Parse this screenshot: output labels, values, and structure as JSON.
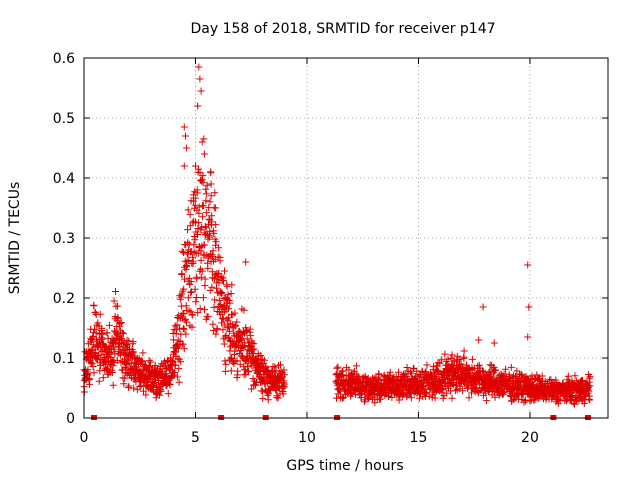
{
  "chart_data": {
    "type": "scatter",
    "title": "Day 158 of 2018, SRMTID for receiver p147",
    "xlabel": "GPS time / hours",
    "ylabel": "SRMTID / TECUs",
    "xlim": [
      0,
      23.5
    ],
    "ylim": [
      0,
      0.6
    ],
    "x_ticks": [
      0,
      5,
      10,
      15,
      20
    ],
    "y_ticks": [
      0,
      0.1,
      0.2,
      0.3,
      0.4,
      0.5,
      0.6
    ],
    "x_tick_labels": [
      "0",
      "5",
      "10",
      "15",
      "20"
    ],
    "y_tick_labels": [
      "0",
      "0.1",
      "0.2",
      "0.3",
      "0.4",
      "0.5",
      "0.6"
    ],
    "grid": true,
    "marker": "plus",
    "color": "#e00000",
    "gap_markers_x": [
      0.45,
      6.15,
      8.15,
      11.35,
      21.05,
      22.6
    ],
    "profile": [
      {
        "x": 0.0,
        "y": 0.07
      },
      {
        "x": 0.2,
        "y": 0.09
      },
      {
        "x": 0.45,
        "y": 0.13
      },
      {
        "x": 0.8,
        "y": 0.11
      },
      {
        "x": 1.2,
        "y": 0.1
      },
      {
        "x": 1.45,
        "y": 0.15
      },
      {
        "x": 1.8,
        "y": 0.1
      },
      {
        "x": 2.3,
        "y": 0.08
      },
      {
        "x": 2.8,
        "y": 0.07
      },
      {
        "x": 3.3,
        "y": 0.06
      },
      {
        "x": 3.8,
        "y": 0.07
      },
      {
        "x": 4.1,
        "y": 0.11
      },
      {
        "x": 4.4,
        "y": 0.18
      },
      {
        "x": 4.8,
        "y": 0.27
      },
      {
        "x": 5.2,
        "y": 0.33
      },
      {
        "x": 5.5,
        "y": 0.32
      },
      {
        "x": 5.8,
        "y": 0.27
      },
      {
        "x": 6.1,
        "y": 0.2
      },
      {
        "x": 6.5,
        "y": 0.15
      },
      {
        "x": 7.0,
        "y": 0.12
      },
      {
        "x": 7.5,
        "y": 0.1
      },
      {
        "x": 8.0,
        "y": 0.07
      },
      {
        "x": 8.5,
        "y": 0.06
      },
      {
        "x": 9.0,
        "y": 0.06
      },
      {
        "x": 11.5,
        "y": 0.06
      },
      {
        "x": 13.0,
        "y": 0.05
      },
      {
        "x": 14.5,
        "y": 0.055
      },
      {
        "x": 15.5,
        "y": 0.06
      },
      {
        "x": 16.5,
        "y": 0.075
      },
      {
        "x": 17.3,
        "y": 0.07
      },
      {
        "x": 18.0,
        "y": 0.06
      },
      {
        "x": 19.0,
        "y": 0.055
      },
      {
        "x": 20.0,
        "y": 0.05
      },
      {
        "x": 21.0,
        "y": 0.045
      },
      {
        "x": 22.0,
        "y": 0.045
      },
      {
        "x": 22.7,
        "y": 0.05
      }
    ],
    "coverage_ranges_hours": [
      [
        0.0,
        9.0
      ],
      [
        11.3,
        22.7
      ]
    ],
    "spread_fraction": 0.4,
    "outliers": [
      {
        "x": 5.15,
        "y": 0.585
      },
      {
        "x": 5.2,
        "y": 0.565
      },
      {
        "x": 5.25,
        "y": 0.545
      },
      {
        "x": 5.1,
        "y": 0.52
      },
      {
        "x": 4.5,
        "y": 0.485
      },
      {
        "x": 4.55,
        "y": 0.47
      },
      {
        "x": 4.6,
        "y": 0.45
      },
      {
        "x": 5.3,
        "y": 0.46
      },
      {
        "x": 5.4,
        "y": 0.44
      },
      {
        "x": 5.0,
        "y": 0.42
      },
      {
        "x": 4.5,
        "y": 0.42
      },
      {
        "x": 5.7,
        "y": 0.39
      },
      {
        "x": 5.9,
        "y": 0.35
      },
      {
        "x": 6.3,
        "y": 0.245
      },
      {
        "x": 7.25,
        "y": 0.26
      },
      {
        "x": 19.9,
        "y": 0.255
      },
      {
        "x": 17.9,
        "y": 0.185
      },
      {
        "x": 19.95,
        "y": 0.185
      },
      {
        "x": 1.35,
        "y": 0.195
      },
      {
        "x": 19.9,
        "y": 0.135
      },
      {
        "x": 17.7,
        "y": 0.13
      },
      {
        "x": 18.4,
        "y": 0.125
      }
    ]
  }
}
